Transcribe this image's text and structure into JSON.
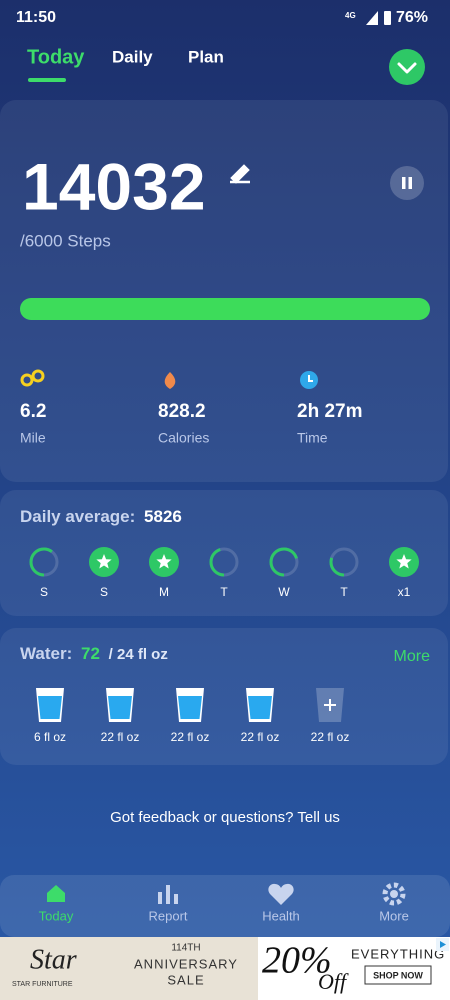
{
  "status_bar": {
    "time": "11:50",
    "network": "4G",
    "battery": "76%"
  },
  "tabs": [
    "Today",
    "Daily",
    "Plan"
  ],
  "steps": {
    "count": "14032",
    "goal": "/6000 Steps"
  },
  "stats": [
    {
      "value": "6.2",
      "label": "Mile"
    },
    {
      "value": "828.2",
      "label": "Calories"
    },
    {
      "value": "2h 27m",
      "label": "Time"
    }
  ],
  "daily_average": {
    "label": "Daily average:",
    "value": "5826",
    "days": [
      "S",
      "S",
      "M",
      "T",
      "W",
      "T",
      "x1"
    ]
  },
  "water": {
    "label": "Water:",
    "value": "72",
    "goal": "/ 24 fl oz",
    "more": "More",
    "cups": [
      "6 fl oz",
      "22 fl oz",
      "22 fl oz",
      "22 fl oz",
      "22 fl oz"
    ]
  },
  "feedback": "Got feedback or questions? Tell us",
  "nav": [
    "Today",
    "Report",
    "Health",
    "More"
  ],
  "ad": {
    "brand": "Star",
    "brand_sub": "STAR FURNITURE",
    "event_number": "114TH",
    "event_line1": "ANNIVERSARY",
    "event_line2": "SALE",
    "discount": "20%",
    "discount_suffix": "Off",
    "offer": "EVERYTHING",
    "button": "SHOP NOW"
  }
}
